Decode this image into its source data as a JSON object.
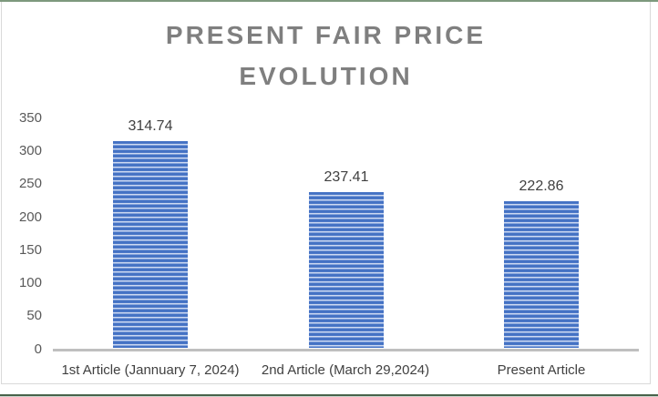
{
  "window": {
    "top_edge_color": "#7d997d",
    "bottom_edge_color": "#47624a",
    "chart_border_color": "#d9d9d9",
    "background": "#ffffff"
  },
  "chart_data": {
    "type": "bar",
    "title": "PRESENT FAIR PRICE EVOLUTION",
    "categories": [
      "1st Article (Jannuary 7, 2024)",
      "2nd Article (March 29,2024)",
      "Present Article"
    ],
    "values": [
      314.74,
      237.41,
      222.86
    ],
    "value_labels": [
      "314.74",
      "237.41",
      "222.86"
    ],
    "xlabel": "",
    "ylabel": "",
    "ylim": [
      0,
      350
    ],
    "y_ticks": [
      0,
      50,
      100,
      150,
      200,
      250,
      300,
      350
    ],
    "grid": false,
    "legend_position": "none",
    "bar_fill": {
      "pattern": "horizontal-stripes",
      "stripe_color": "#4472c4",
      "gap_color": "#ffffff"
    },
    "title_color": "#7f7f7f",
    "axis_line_color": "#bfbfbf",
    "tick_label_color": "#595959",
    "data_label_color": "#404040"
  }
}
